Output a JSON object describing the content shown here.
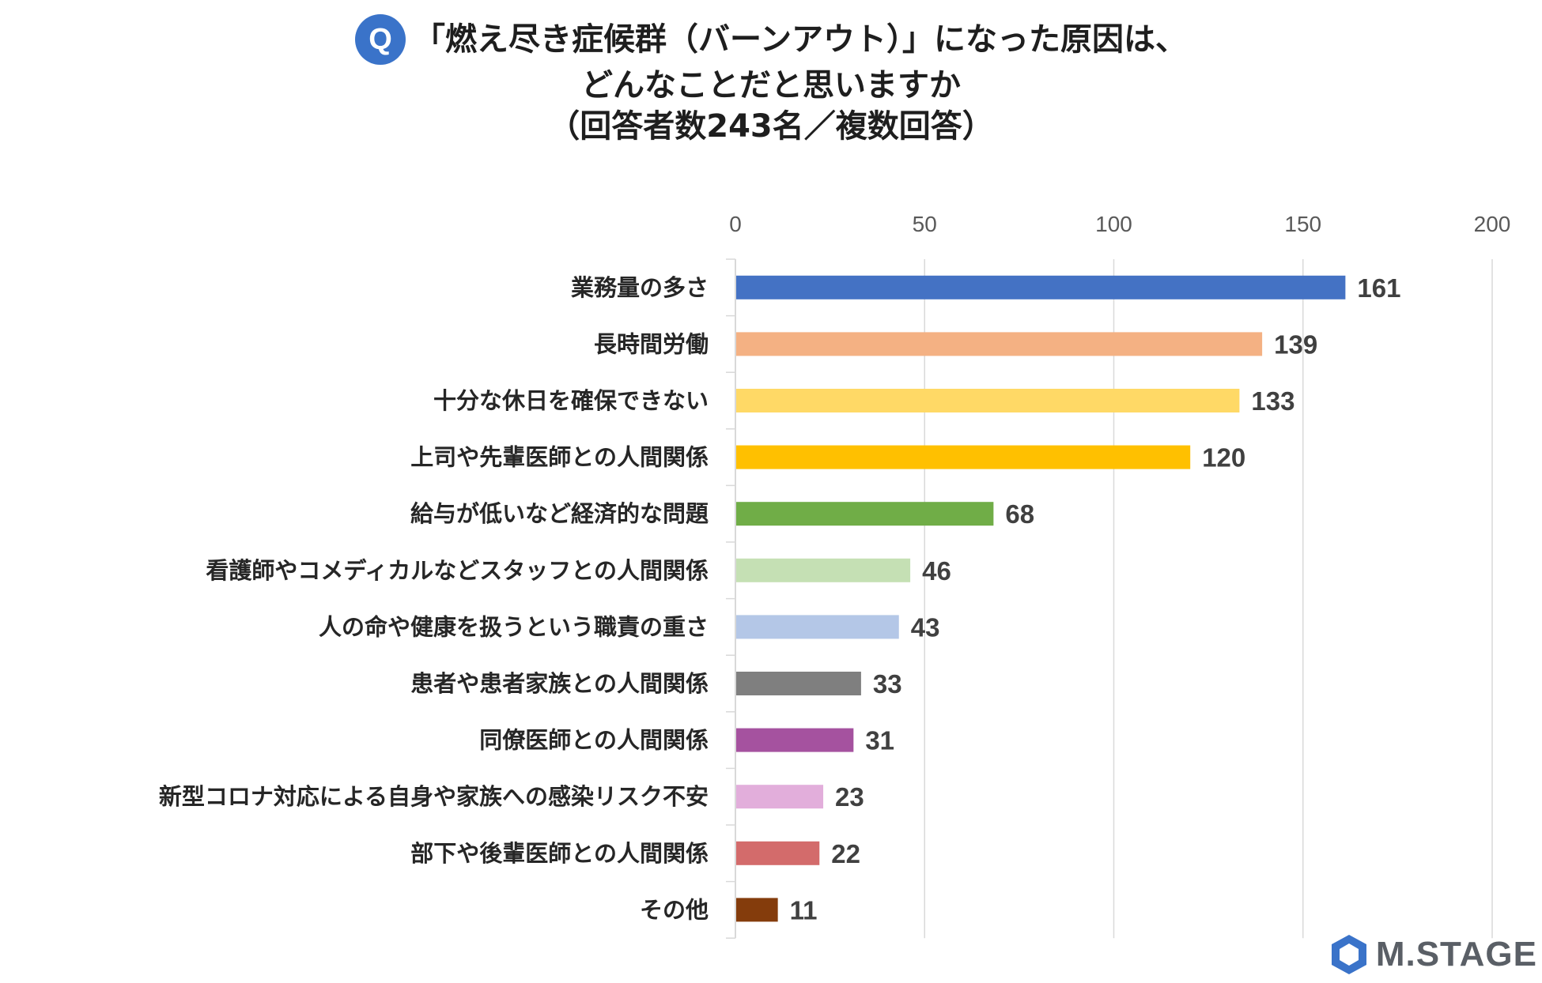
{
  "title": {
    "q_badge": "Q",
    "line1": "「燃え尽き症候群（バーンアウト）」になった原因は、",
    "line2": "どんなことだと思いますか",
    "line3": "（回答者数243名／複数回答）"
  },
  "logo": {
    "text": "M.STAGE",
    "icon": "hexagon-logo-icon",
    "color": "#3a73c9"
  },
  "chart_data": {
    "type": "bar",
    "orientation": "horizontal",
    "xlim": [
      0,
      200
    ],
    "x_ticks": [
      0,
      50,
      100,
      150,
      200
    ],
    "x_axis_position": "top",
    "grid": true,
    "categories": [
      "業務量の多さ",
      "長時間労働",
      "十分な休日を確保できない",
      "上司や先輩医師との人間関係",
      "給与が低いなど経済的な問題",
      "看護師やコメディカルなどスタッフとの人間関係",
      "人の命や健康を扱うという職責の重さ",
      "患者や患者家族との人間関係",
      "同僚医師との人間関係",
      "新型コロナ対応による自身や家族への感染リスク不安",
      "部下や後輩医師との人間関係",
      "その他"
    ],
    "values": [
      161,
      139,
      133,
      120,
      68,
      46,
      43,
      33,
      31,
      23,
      22,
      11
    ],
    "colors": [
      "#4472c4",
      "#f4b183",
      "#ffd966",
      "#ffc000",
      "#70ad47",
      "#c5e0b4",
      "#b4c7e7",
      "#7f7f7f",
      "#a5529f",
      "#e2aedb",
      "#d36b6b",
      "#843c0c"
    ]
  }
}
